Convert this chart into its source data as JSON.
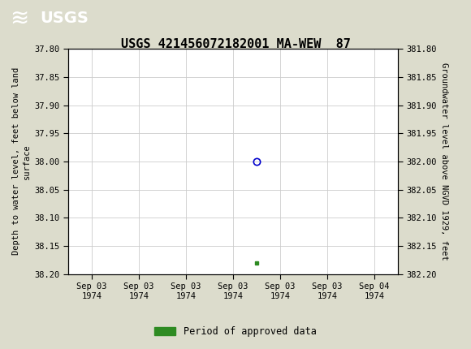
{
  "title": "USGS 421456072182001 MA-WEW  87",
  "title_fontsize": 11,
  "header_color": "#1a6b3c",
  "bg_color": "#dcdccc",
  "plot_bg_color": "#ffffff",
  "left_ylabel": "Depth to water level, feet below land\nsurface",
  "right_ylabel": "Groundwater level above NGVD 1929, feet",
  "ylim_left": [
    37.8,
    38.2
  ],
  "ylim_right": [
    381.8,
    382.2
  ],
  "yticks_left": [
    37.8,
    37.85,
    37.9,
    37.95,
    38.0,
    38.05,
    38.1,
    38.15,
    38.2
  ],
  "yticks_right": [
    381.8,
    381.85,
    381.9,
    381.95,
    382.0,
    382.05,
    382.1,
    382.15,
    382.2
  ],
  "data_point_x": 3.5,
  "data_point_y": 38.0,
  "data_point_color": "#0000cc",
  "data_point_marker_size": 6,
  "green_marker_x": 3.5,
  "green_marker_y": 38.18,
  "green_marker_color": "#2e8b22",
  "grid_color": "#cccccc",
  "tick_label_color": "#000000",
  "font_family": "monospace",
  "xtick_labels": [
    "Sep 03\n1974",
    "Sep 03\n1974",
    "Sep 03\n1974",
    "Sep 03\n1974",
    "Sep 03\n1974",
    "Sep 03\n1974",
    "Sep 04\n1974"
  ],
  "xtick_positions": [
    0,
    1,
    2,
    3,
    4,
    5,
    6
  ],
  "legend_label": "Period of approved data",
  "legend_color": "#2e8b22"
}
